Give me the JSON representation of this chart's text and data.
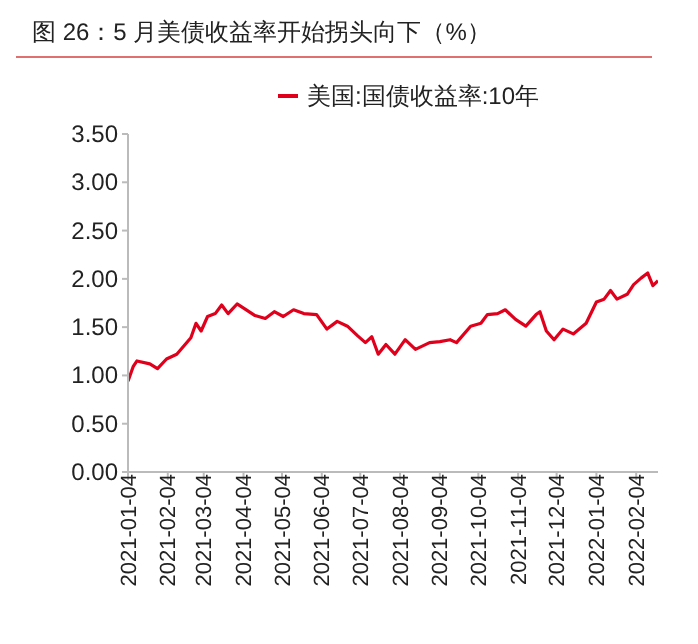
{
  "chart_data": {
    "type": "line",
    "title": "图 26：5 月美债收益率开始拐头向下（%）",
    "legend": "top",
    "x": [
      "2021-01-04",
      "2021-01-08",
      "2021-01-11",
      "2021-01-21",
      "2021-01-27",
      "2021-02-03",
      "2021-02-11",
      "2021-02-22",
      "2021-02-26",
      "2021-03-02",
      "2021-03-07",
      "2021-03-13",
      "2021-03-18",
      "2021-03-23",
      "2021-03-30",
      "2021-04-05",
      "2021-04-13",
      "2021-04-21",
      "2021-04-28",
      "2021-05-05",
      "2021-05-13",
      "2021-05-21",
      "2021-05-31",
      "2021-06-08",
      "2021-06-16",
      "2021-06-24",
      "2021-07-02",
      "2021-07-08",
      "2021-07-13",
      "2021-07-18",
      "2021-07-24",
      "2021-07-31",
      "2021-08-08",
      "2021-08-16",
      "2021-08-27",
      "2021-09-04",
      "2021-09-12",
      "2021-09-17",
      "2021-09-28",
      "2021-10-06",
      "2021-10-11",
      "2021-10-19",
      "2021-10-25",
      "2021-11-02",
      "2021-11-10",
      "2021-11-18",
      "2021-11-21",
      "2021-11-26",
      "2021-12-02",
      "2021-12-09",
      "2021-12-17",
      "2021-12-27",
      "2022-01-04",
      "2022-01-10",
      "2022-01-15",
      "2022-01-20",
      "2022-01-28",
      "2022-02-02",
      "2022-02-08",
      "2022-02-13",
      "2022-02-17",
      "2022-02-21"
    ],
    "series": [
      {
        "name": "美国:国债收益率:10年",
        "color": "#e0001b",
        "values": [
          0.94,
          1.09,
          1.15,
          1.12,
          1.07,
          1.17,
          1.22,
          1.39,
          1.54,
          1.46,
          1.61,
          1.64,
          1.73,
          1.64,
          1.74,
          1.69,
          1.62,
          1.59,
          1.66,
          1.61,
          1.68,
          1.64,
          1.63,
          1.48,
          1.56,
          1.51,
          1.41,
          1.34,
          1.4,
          1.22,
          1.32,
          1.22,
          1.37,
          1.27,
          1.34,
          1.35,
          1.37,
          1.34,
          1.51,
          1.54,
          1.63,
          1.64,
          1.68,
          1.58,
          1.51,
          1.63,
          1.66,
          1.46,
          1.37,
          1.48,
          1.43,
          1.54,
          1.76,
          1.79,
          1.88,
          1.79,
          1.84,
          1.94,
          2.01,
          2.06,
          1.93,
          1.98
        ]
      }
    ],
    "xlim": [
      "2021-01-04",
      "2022-02-21"
    ],
    "xticks": [
      "2021-01-04",
      "2021-02-04",
      "2021-03-04",
      "2021-04-04",
      "2021-05-04",
      "2021-06-04",
      "2021-07-04",
      "2021-08-04",
      "2021-09-04",
      "2021-10-04",
      "2021-11-04",
      "2021-12-04",
      "2022-01-04",
      "2022-02-04"
    ],
    "ylim": [
      0,
      3.5
    ],
    "yticks": [
      {
        "value": 0,
        "label": "0.00"
      },
      {
        "value": 0.5,
        "label": "0.50"
      },
      {
        "value": 1,
        "label": "1.00"
      },
      {
        "value": 1.5,
        "label": "1.50"
      },
      {
        "value": 2,
        "label": "2.00"
      },
      {
        "value": 2.5,
        "label": "2.50"
      },
      {
        "value": 3,
        "label": "3.00"
      },
      {
        "value": 3.5,
        "label": "3.50"
      }
    ]
  }
}
